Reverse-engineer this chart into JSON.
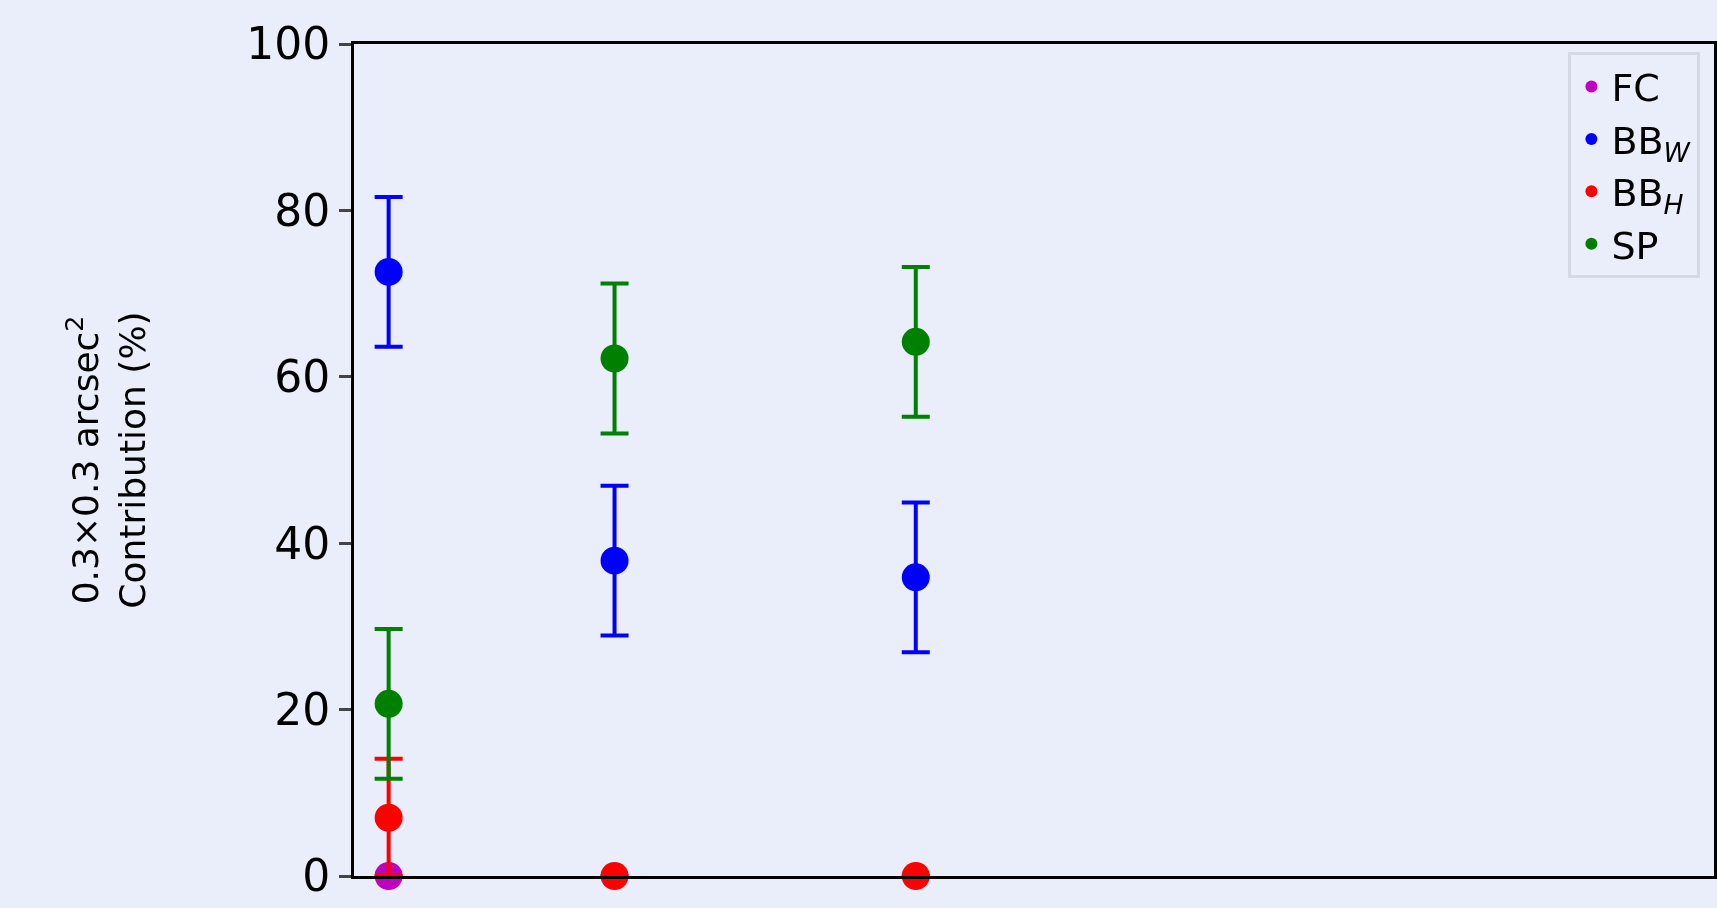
{
  "chart_data": {
    "type": "scatter",
    "ylabel": "0.3×0.3 arcsec$^{2}$\nContribution (%)",
    "categories": [
      null,
      null,
      null,
      null,
      null,
      null,
      null,
      null,
      null,
      null,
      null,
      null,
      null,
      null,
      null,
      null,
      null,
      null
    ],
    "series": [
      {
        "name": "FC",
        "color": "#bf00bf",
        "values": [
          0,
          null,
          null,
          null,
          null,
          null,
          null,
          null,
          null,
          null,
          null,
          null,
          null,
          null,
          null,
          null,
          null,
          null
        ]
      },
      {
        "name": "BB$_{W}$",
        "color": "#0000ff",
        "values": [
          72.6,
          null,
          null,
          37.9,
          null,
          null,
          null,
          35.9,
          null,
          null,
          null,
          null,
          null,
          null,
          null,
          null,
          null,
          null
        ],
        "errors": [
          9,
          null,
          null,
          9,
          null,
          null,
          null,
          9,
          null,
          null,
          null,
          null,
          null,
          null,
          null,
          null,
          null,
          null
        ]
      },
      {
        "name": "BB$_{H}$",
        "color": "#ff0000",
        "values": [
          7.0,
          null,
          null,
          0,
          null,
          null,
          null,
          0,
          null,
          null,
          null,
          null,
          null,
          null,
          null,
          null,
          null,
          null
        ],
        "errors": [
          [
            0,
            14.1
          ],
          null,
          null,
          null,
          null,
          null,
          null,
          null,
          null,
          null,
          null,
          null,
          null,
          null,
          null,
          null,
          null,
          null
        ]
      },
      {
        "name": "SP",
        "color": "#008000",
        "values": [
          20.7,
          null,
          null,
          62.2,
          null,
          null,
          null,
          64.2,
          null,
          null,
          null,
          null,
          null,
          null,
          null,
          null,
          null,
          null
        ],
        "errors": [
          9,
          null,
          null,
          9,
          null,
          null,
          null,
          9,
          null,
          null,
          null,
          null,
          null,
          null,
          null,
          null,
          null,
          null
        ]
      }
    ],
    "ylim": [
      0,
      100
    ],
    "yticks": [
      0,
      20,
      40,
      60,
      80,
      100
    ],
    "tick_labels": "y",
    "grid": false,
    "legend": "top right",
    "marker": "circle"
  }
}
